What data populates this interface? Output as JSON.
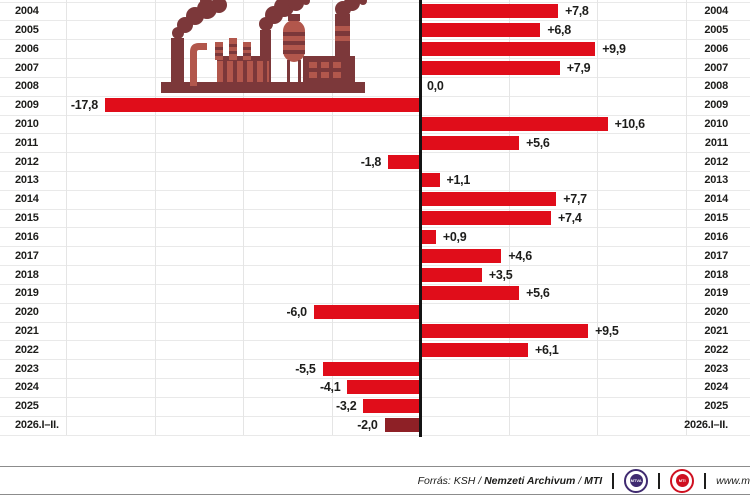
{
  "chart_data": {
    "type": "bar",
    "orientation": "horizontal",
    "categories": [
      "2004",
      "2005",
      "2006",
      "2007",
      "2008",
      "2009",
      "2010",
      "2011",
      "2012",
      "2013",
      "2014",
      "2015",
      "2016",
      "2017",
      "2018",
      "2019",
      "2020",
      "2021",
      "2022",
      "2023",
      "2024",
      "2025",
      "2026.I–II."
    ],
    "values": [
      7.8,
      6.8,
      9.9,
      7.9,
      0.0,
      -17.8,
      10.6,
      5.6,
      -1.8,
      1.1,
      7.7,
      7.4,
      0.9,
      4.6,
      3.5,
      5.6,
      -6.0,
      9.5,
      6.1,
      -5.5,
      -4.1,
      -3.2,
      -2.0
    ],
    "value_labels": [
      "+7,8",
      "+6,8",
      "+9,9",
      "+7,9",
      "0,0",
      "-17,8",
      "+10,6",
      "+5,6",
      "-1,8",
      "+1,1",
      "+7,7",
      "+7,4",
      "+0,9",
      "+4,6",
      "+3,5",
      "+5,6",
      "-6,0",
      "+9,5",
      "+6,1",
      "-5,5",
      "-4,1",
      "-3,2",
      "-2,0"
    ],
    "title": "",
    "xlabel": "",
    "ylabel": "",
    "xlim": [
      -20,
      15
    ],
    "gridline_step": 5,
    "grid": true,
    "legend_position": "none",
    "bar_color": "#e00d1a",
    "last_bar_color": "#8e2026",
    "axis_color": "#141414"
  },
  "icons": {
    "factory": "factory-illustration",
    "mtva_logo": "mtva-logo",
    "mti_logo": "mti-logo"
  },
  "footer": {
    "source_prefix": "Forrás: KSH / ",
    "source_bold1": "Nemzeti Archivum",
    "source_sep": " / ",
    "source_bold2": "MTI",
    "logo1_label": "MTVA",
    "logo2_label": "MTI",
    "website": "www.m"
  }
}
